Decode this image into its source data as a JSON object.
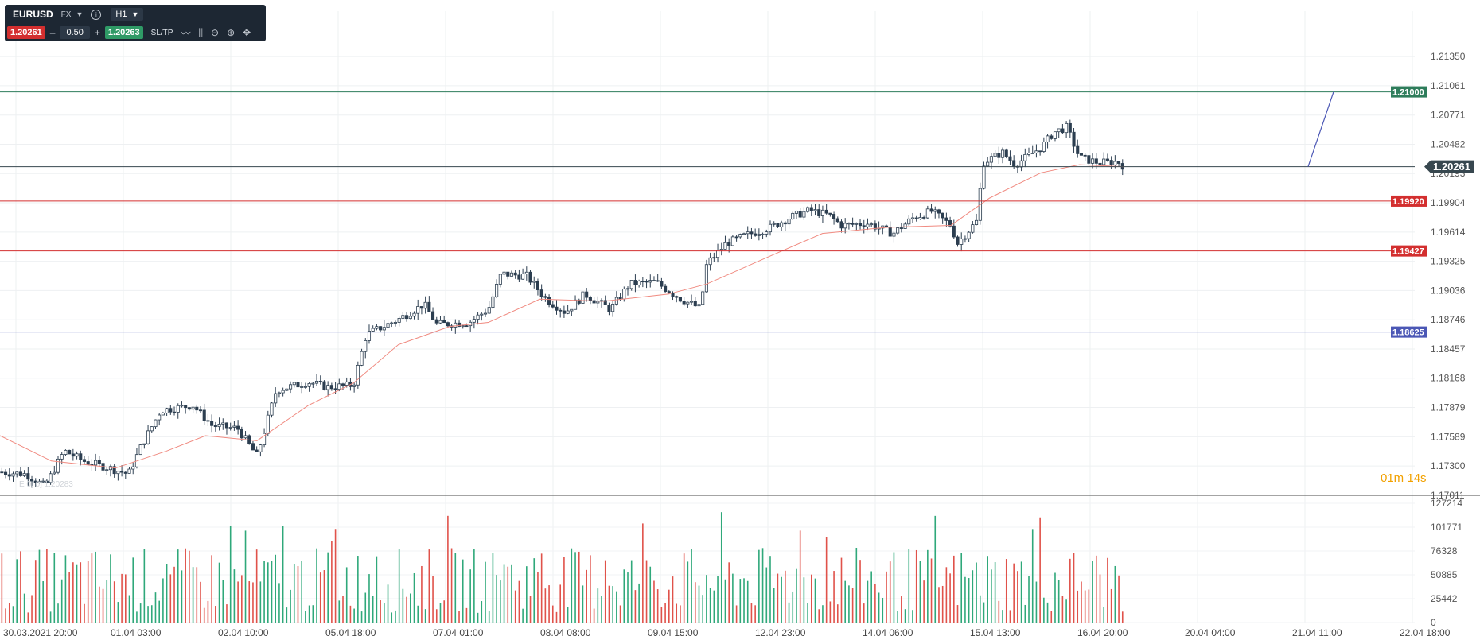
{
  "toolbar": {
    "symbol": "EURUSD",
    "asset_class": "FX",
    "timeframe": "H1",
    "sell_price": "1.20261",
    "quantity": "0.50",
    "buy_price": "1.20263",
    "sltp_label": "SL/TP",
    "icons": [
      "chevron-down-icon",
      "info-icon",
      "chevron-down-icon",
      "line-chart-icon",
      "indicators-icon",
      "zoom-out-icon",
      "zoom-in-icon",
      "crosshair-icon"
    ]
  },
  "colors": {
    "up_candle": "#ffffff",
    "down_candle": "#2c3e50",
    "ma_line": "#f08a80",
    "take_profit": "#2e7d5b",
    "current_price": "#37474f",
    "stop_levels": "#d32f2f",
    "support": "#4b57b5",
    "volume_up": "#2fa87a",
    "volume_down": "#e0524a",
    "timer": "#f2a100"
  },
  "timer": "01m 14s",
  "watermark": "E 0, 0] 1.20283",
  "chart_data": {
    "type": "candlestick",
    "symbol": "EURUSD",
    "timeframe": "H1",
    "price_axis_ticks": [
      "1.21350",
      "1.21061",
      "1.20771",
      "1.20482",
      "1.20193",
      "1.19904",
      "1.19614",
      "1.19325",
      "1.19036",
      "1.18746",
      "1.18457",
      "1.18168",
      "1.17879",
      "1.17589",
      "1.17300",
      "1.17011"
    ],
    "ylim": [
      1.1701,
      1.215
    ],
    "volume_axis_ticks": [
      "127214",
      "101771",
      "76328",
      "50885",
      "25442",
      "0"
    ],
    "volume_max": 127214,
    "time_axis_ticks": [
      "30.03.2021 20:00",
      "01.04 03:00",
      "02.04 10:00",
      "05.04 18:00",
      "07.04 01:00",
      "08.04 08:00",
      "09.04 15:00",
      "12.04 23:00",
      "14.04 06:00",
      "15.04 13:00",
      "16.04 20:00",
      "20.04 04:00",
      "21.04 11:00",
      "22.04 18:00"
    ],
    "price_levels": [
      {
        "label": "1.21000",
        "value": 1.21,
        "kind": "take_profit"
      },
      {
        "label": "1.20261",
        "value": 1.20261,
        "kind": "current"
      },
      {
        "label": "1.19920",
        "value": 1.1992,
        "kind": "stop"
      },
      {
        "label": "1.19427",
        "value": 1.19427,
        "kind": "stop"
      },
      {
        "label": "1.18625",
        "value": 1.18625,
        "kind": "support"
      }
    ],
    "price_path": [
      {
        "x": 0.0,
        "y": 1.1724
      },
      {
        "x": 0.02,
        "y": 1.1722
      },
      {
        "x": 0.035,
        "y": 1.171
      },
      {
        "x": 0.05,
        "y": 1.1745
      },
      {
        "x": 0.065,
        "y": 1.1735
      },
      {
        "x": 0.085,
        "y": 1.1728
      },
      {
        "x": 0.1,
        "y": 1.1722
      },
      {
        "x": 0.11,
        "y": 1.175
      },
      {
        "x": 0.125,
        "y": 1.1785
      },
      {
        "x": 0.15,
        "y": 1.179
      },
      {
        "x": 0.165,
        "y": 1.177
      },
      {
        "x": 0.185,
        "y": 1.1767
      },
      {
        "x": 0.2,
        "y": 1.174
      },
      {
        "x": 0.215,
        "y": 1.1805
      },
      {
        "x": 0.24,
        "y": 1.1813
      },
      {
        "x": 0.255,
        "y": 1.1808
      },
      {
        "x": 0.275,
        "y": 1.181
      },
      {
        "x": 0.285,
        "y": 1.186
      },
      {
        "x": 0.31,
        "y": 1.1875
      },
      {
        "x": 0.33,
        "y": 1.189
      },
      {
        "x": 0.34,
        "y": 1.187
      },
      {
        "x": 0.365,
        "y": 1.1872
      },
      {
        "x": 0.38,
        "y": 1.1885
      },
      {
        "x": 0.39,
        "y": 1.192
      },
      {
        "x": 0.41,
        "y": 1.1918
      },
      {
        "x": 0.425,
        "y": 1.1895
      },
      {
        "x": 0.44,
        "y": 1.1882
      },
      {
        "x": 0.455,
        "y": 1.19
      },
      {
        "x": 0.475,
        "y": 1.1885
      },
      {
        "x": 0.49,
        "y": 1.191
      },
      {
        "x": 0.51,
        "y": 1.1912
      },
      {
        "x": 0.53,
        "y": 1.1895
      },
      {
        "x": 0.545,
        "y": 1.1886
      },
      {
        "x": 0.55,
        "y": 1.193
      },
      {
        "x": 0.565,
        "y": 1.195
      },
      {
        "x": 0.58,
        "y": 1.1958
      },
      {
        "x": 0.6,
        "y": 1.1966
      },
      {
        "x": 0.615,
        "y": 1.1976
      },
      {
        "x": 0.63,
        "y": 1.1983
      },
      {
        "x": 0.645,
        "y": 1.1978
      },
      {
        "x": 0.655,
        "y": 1.1968
      },
      {
        "x": 0.675,
        "y": 1.197
      },
      {
        "x": 0.695,
        "y": 1.196
      },
      {
        "x": 0.71,
        "y": 1.1975
      },
      {
        "x": 0.725,
        "y": 1.1982
      },
      {
        "x": 0.74,
        "y": 1.1968
      },
      {
        "x": 0.745,
        "y": 1.195
      },
      {
        "x": 0.76,
        "y": 1.1972
      },
      {
        "x": 0.765,
        "y": 1.203
      },
      {
        "x": 0.78,
        "y": 1.204
      },
      {
        "x": 0.79,
        "y": 1.2028
      },
      {
        "x": 0.81,
        "y": 1.2045
      },
      {
        "x": 0.82,
        "y": 1.206
      },
      {
        "x": 0.83,
        "y": 1.2065
      },
      {
        "x": 0.84,
        "y": 1.2035
      },
      {
        "x": 0.855,
        "y": 1.203
      },
      {
        "x": 0.87,
        "y": 1.2031
      },
      {
        "x": 0.875,
        "y": 1.2026
      }
    ],
    "ma_path": [
      {
        "x": 0.0,
        "y": 1.176
      },
      {
        "x": 0.04,
        "y": 1.1735
      },
      {
        "x": 0.09,
        "y": 1.1728
      },
      {
        "x": 0.13,
        "y": 1.1745
      },
      {
        "x": 0.16,
        "y": 1.176
      },
      {
        "x": 0.2,
        "y": 1.1755
      },
      {
        "x": 0.24,
        "y": 1.179
      },
      {
        "x": 0.275,
        "y": 1.1812
      },
      {
        "x": 0.31,
        "y": 1.185
      },
      {
        "x": 0.35,
        "y": 1.1868
      },
      {
        "x": 0.38,
        "y": 1.1872
      },
      {
        "x": 0.42,
        "y": 1.1895
      },
      {
        "x": 0.47,
        "y": 1.1893
      },
      {
        "x": 0.52,
        "y": 1.19
      },
      {
        "x": 0.55,
        "y": 1.191
      },
      {
        "x": 0.6,
        "y": 1.1938
      },
      {
        "x": 0.64,
        "y": 1.196
      },
      {
        "x": 0.69,
        "y": 1.1966
      },
      {
        "x": 0.74,
        "y": 1.1968
      },
      {
        "x": 0.77,
        "y": 1.1995
      },
      {
        "x": 0.81,
        "y": 1.202
      },
      {
        "x": 0.84,
        "y": 1.2028
      },
      {
        "x": 0.875,
        "y": 1.2026
      }
    ]
  }
}
